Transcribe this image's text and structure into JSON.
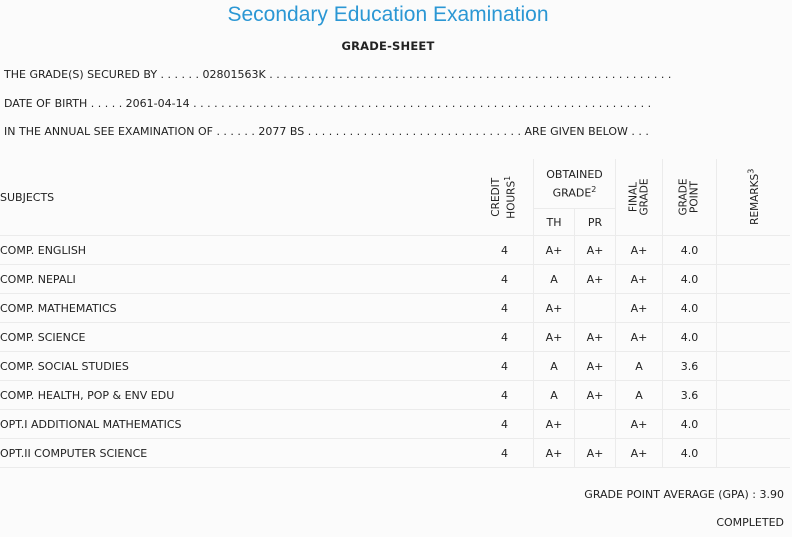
{
  "header": {
    "title": "Secondary Education Examination",
    "subtitle": "GRADE-SHEET"
  },
  "info": {
    "secured_by": "THE GRADE(S) SECURED BY . . . . . . 02801563K . . . . . . . . . . . . . . . . . . . . . . . . . . . . . . . . . . . . . . . . . . . . . . . . . . . . . . . . . .",
    "dob": "DATE OF BIRTH . . . . . 2061-04-14 . . . . . . . . . . . . . . . . . . . . . . . . . . . . . . . . . . . . . . . . . . . . . . . . . . . . . . . . . . . . . . . . . .",
    "exam": "IN THE ANNUAL SEE EXAMINATION OF . . . . . . 2077 BS . . . . . . . . . . . . . . . . . . . . . . . . . . . . . . . ARE GIVEN BELOW . . ."
  },
  "table": {
    "headers": {
      "subjects": "SUBJECTS",
      "credit_1": "CREDIT",
      "credit_2": "HOURS",
      "credit_sup": "1",
      "obtained_1": "OBTAINED",
      "obtained_2": "GRADE",
      "obtained_sup": "2",
      "th": "TH",
      "pr": "PR",
      "final_1": "FINAL",
      "final_2": "GRADE",
      "gp_1": "GRADE",
      "gp_2": "POINT",
      "remarks": "REMARKS",
      "remarks_sup": "3"
    },
    "rows": [
      {
        "subject": "COMP. ENGLISH",
        "credit": "4",
        "th": "A+",
        "pr": "A+",
        "final": "A+",
        "gp": "4.0",
        "remarks": ""
      },
      {
        "subject": "COMP. NEPALI",
        "credit": "4",
        "th": "A",
        "pr": "A+",
        "final": "A+",
        "gp": "4.0",
        "remarks": ""
      },
      {
        "subject": "COMP. MATHEMATICS",
        "credit": "4",
        "th": "A+",
        "pr": "",
        "final": "A+",
        "gp": "4.0",
        "remarks": ""
      },
      {
        "subject": "COMP. SCIENCE",
        "credit": "4",
        "th": "A+",
        "pr": "A+",
        "final": "A+",
        "gp": "4.0",
        "remarks": ""
      },
      {
        "subject": "COMP. SOCIAL STUDIES",
        "credit": "4",
        "th": "A",
        "pr": "A+",
        "final": "A",
        "gp": "3.6",
        "remarks": ""
      },
      {
        "subject": "COMP. HEALTH, POP & ENV EDU",
        "credit": "4",
        "th": "A",
        "pr": "A+",
        "final": "A",
        "gp": "3.6",
        "remarks": ""
      },
      {
        "subject": "OPT.I ADDITIONAL MATHEMATICS",
        "credit": "4",
        "th": "A+",
        "pr": "",
        "final": "A+",
        "gp": "4.0",
        "remarks": ""
      },
      {
        "subject": "OPT.II COMPUTER SCIENCE",
        "credit": "4",
        "th": "A+",
        "pr": "A+",
        "final": "A+",
        "gp": "4.0",
        "remarks": ""
      }
    ]
  },
  "summary": {
    "gpa": "GRADE POINT AVERAGE (GPA) : 3.90",
    "status": "COMPLETED"
  },
  "colors": {
    "title": "#2b97d4"
  }
}
